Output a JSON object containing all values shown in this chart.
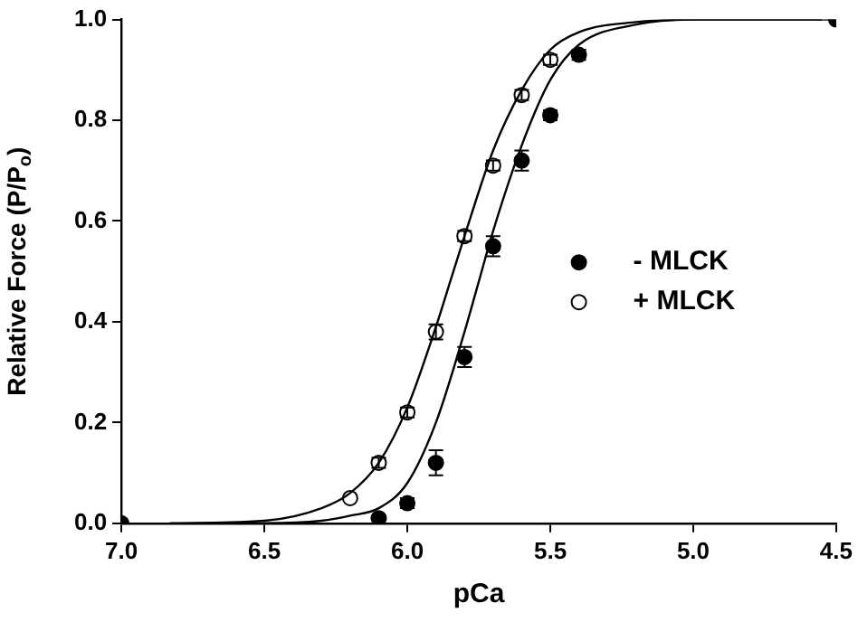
{
  "chart_data": {
    "type": "scatter",
    "xlabel": "pCa",
    "ylabel": "Relative Force (P/P$_{o}$)",
    "xlim": [
      7.0,
      4.5
    ],
    "xticks": [
      {
        "value": 7.0,
        "label": "7.0"
      },
      {
        "value": 6.5,
        "label": "6.5"
      },
      {
        "value": 6.0,
        "label": "6.0"
      },
      {
        "value": 5.5,
        "label": "5.5"
      },
      {
        "value": 5.0,
        "label": "5.0"
      },
      {
        "value": 4.5,
        "label": "4.5"
      }
    ],
    "ylim": [
      0,
      1.0
    ],
    "yticks": [
      {
        "value": 0,
        "label": "0.0"
      },
      {
        "value": 0.2,
        "label": "0.2"
      },
      {
        "value": 0.4,
        "label": "0.4"
      },
      {
        "value": 0.6,
        "label": "0.6"
      },
      {
        "value": 0.8,
        "label": "0.8"
      },
      {
        "value": 1.0,
        "label": "1.0"
      }
    ],
    "grid": false,
    "legend": "right",
    "marker": "circle",
    "series": [
      {
        "type": "line",
        "color": "#000000",
        "marker": "none",
        "x": [
          6.83,
          6.5,
          6.3,
          6.2,
          6.1,
          6.0,
          5.9,
          5.85,
          5.8,
          5.7,
          5.6,
          5.5,
          5.4,
          5.2,
          5.0,
          4.5
        ],
        "values": [
          0,
          0.005,
          0.03,
          0.06,
          0.12,
          0.23,
          0.39,
          0.48,
          0.57,
          0.74,
          0.86,
          0.94,
          0.975,
          0.995,
          1.0,
          1.0
        ]
      },
      {
        "type": "line",
        "color": "#000000",
        "marker": "none",
        "x": [
          6.6,
          6.5,
          6.3,
          6.2,
          6.1,
          6.0,
          5.9,
          5.8,
          5.75,
          5.7,
          5.6,
          5.5,
          5.4,
          5.2,
          5.0,
          4.55
        ],
        "values": [
          0,
          0,
          0.005,
          0.015,
          0.03,
          0.08,
          0.2,
          0.38,
          0.48,
          0.58,
          0.75,
          0.88,
          0.95,
          0.99,
          1.0,
          1.0
        ]
      },
      {
        "name": "- MLCK",
        "color": "#000000",
        "x": [
          7.0,
          6.1,
          6.0,
          5.9,
          5.8,
          5.7,
          5.6,
          5.5,
          5.4,
          4.5
        ],
        "values": [
          0,
          0.01,
          0.04,
          0.12,
          0.33,
          0.55,
          0.72,
          0.81,
          0.93,
          1.0
        ],
        "errors": [
          null,
          null,
          0.01,
          0.025,
          0.02,
          0.02,
          0.02,
          0.01,
          0.01,
          null
        ]
      },
      {
        "name": "+ MLCK",
        "color": "#ffffff",
        "x": [
          6.2,
          6.1,
          6.0,
          5.9,
          5.8,
          5.7,
          5.6,
          5.5
        ],
        "values": [
          0.05,
          0.12,
          0.22,
          0.38,
          0.57,
          0.71,
          0.85,
          0.92
        ],
        "errors": [
          null,
          0.01,
          0.01,
          0.015,
          0.01,
          0.01,
          0.01,
          0.01
        ]
      }
    ]
  }
}
